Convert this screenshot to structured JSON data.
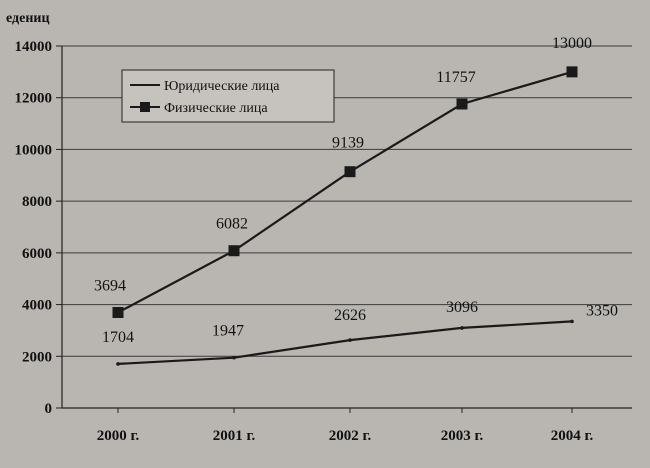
{
  "chart_data": {
    "type": "line",
    "unit_label": "едениц",
    "x": [
      "2000 г.",
      "2001 г.",
      "2002 г.",
      "2003 г.",
      "2004 г."
    ],
    "ylim": [
      0,
      14000
    ],
    "yticks": [
      0,
      2000,
      4000,
      6000,
      8000,
      10000,
      12000,
      14000
    ],
    "grid": true,
    "legend_position": "top-left",
    "series": [
      {
        "name": "Юридические лица",
        "values": [
          1704,
          1947,
          2626,
          3096,
          3350
        ],
        "labels": [
          "1704",
          "1947",
          "2626",
          "3096",
          "3350"
        ],
        "marker": "none",
        "color": "#1a1a1a"
      },
      {
        "name": "Физические лица",
        "values": [
          3694,
          6082,
          9139,
          11757,
          13000
        ],
        "labels": [
          "3694",
          "6082",
          "9139",
          "11757",
          "13000"
        ],
        "marker": "square",
        "color": "#1a1a1a"
      }
    ]
  }
}
